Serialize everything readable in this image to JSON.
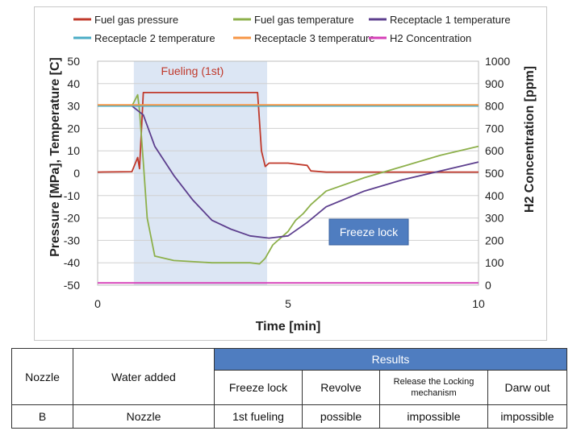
{
  "chart_data": {
    "type": "line",
    "xlabel": "Time [min]",
    "ylabel_left": "Pressure [MPa], Temperature [C]",
    "ylabel_right": "H2 Concentration [ppm]",
    "xlim": [
      0,
      10
    ],
    "ylim_left": [
      -50,
      50
    ],
    "ylim_right": [
      0,
      1000
    ],
    "x_ticks": [
      0,
      5,
      10
    ],
    "y_left_ticks": [
      50,
      40,
      30,
      20,
      10,
      0,
      -10,
      -20,
      -30,
      -40,
      -50
    ],
    "y_right_ticks": [
      1000,
      900,
      800,
      700,
      600,
      500,
      400,
      300,
      200,
      100,
      0
    ],
    "grid": true,
    "legend_position": "top",
    "annotations": {
      "fueling_label": "Fueling (1st)",
      "fueling_range": [
        0.95,
        4.45
      ],
      "freeze_label": "Freeze lock"
    },
    "series": [
      {
        "name": "Fuel gas pressure",
        "color": "#c0392b",
        "x": [
          0,
          0.9,
          1.05,
          1.1,
          1.2,
          1.5,
          4.2,
          4.3,
          4.4,
          4.5,
          5.0,
          5.5,
          5.6,
          6.0,
          8.0,
          10.0
        ],
        "y": [
          0.5,
          0.7,
          7.0,
          2.0,
          36,
          36,
          36,
          10,
          3,
          4.5,
          4.5,
          3.5,
          1.0,
          0.5,
          0.5,
          0.5
        ]
      },
      {
        "name": "Fuel gas temperature",
        "color": "#8db04b",
        "x": [
          0,
          0.9,
          1.05,
          1.1,
          1.2,
          1.3,
          1.5,
          2.0,
          3.0,
          4.0,
          4.25,
          4.4,
          4.6,
          5.0,
          5.2,
          5.4,
          5.6,
          6.0,
          7.0,
          8.0,
          9.0,
          10.0
        ],
        "y": [
          30,
          30,
          35,
          28,
          5,
          -20,
          -37,
          -39,
          -40,
          -40,
          -40.5,
          -38,
          -32,
          -26,
          -21,
          -18,
          -14,
          -8,
          -2,
          3,
          8,
          12
        ]
      },
      {
        "name": "Receptacle 1 temperature",
        "color": "#5d3f8e",
        "x": [
          0,
          0.9,
          1.2,
          1.5,
          2.0,
          2.5,
          3.0,
          3.5,
          4.0,
          4.5,
          5.0,
          5.5,
          6.0,
          7.0,
          8.0,
          9.0,
          10.0
        ],
        "y": [
          30,
          30,
          26,
          12,
          -1,
          -12,
          -21,
          -25,
          -28,
          -29,
          -28,
          -22,
          -15,
          -8,
          -3,
          1,
          5
        ]
      },
      {
        "name": "Receptacle 2 temperature",
        "color": "#4bacc6",
        "x": [
          0,
          2.5,
          5.0,
          7.5,
          10.0
        ],
        "y": [
          30,
          30,
          30,
          30,
          30
        ]
      },
      {
        "name": "Receptacle 3 temperature",
        "color": "#f79646",
        "x": [
          0,
          2.5,
          5.0,
          7.5,
          10.0
        ],
        "y": [
          30.5,
          30.5,
          30.5,
          30.5,
          30.5
        ]
      },
      {
        "name": "H2 Concentration",
        "color": "#d63fb7",
        "axis": "right",
        "x": [
          0,
          10
        ],
        "y": [
          10,
          10
        ]
      }
    ]
  },
  "table": {
    "results_header": "Results",
    "col_nozzle": "Nozzle",
    "col_water": "Water added",
    "col_freeze": "Freeze lock",
    "col_revolve": "Revolve",
    "col_release": "Release the Locking mechanism",
    "col_drawout": "Darw out",
    "row": {
      "nozzle": "B",
      "water": "Nozzle",
      "freeze": "1st fueling",
      "revolve": "possible",
      "release": "impossible",
      "drawout": "impossible"
    }
  }
}
